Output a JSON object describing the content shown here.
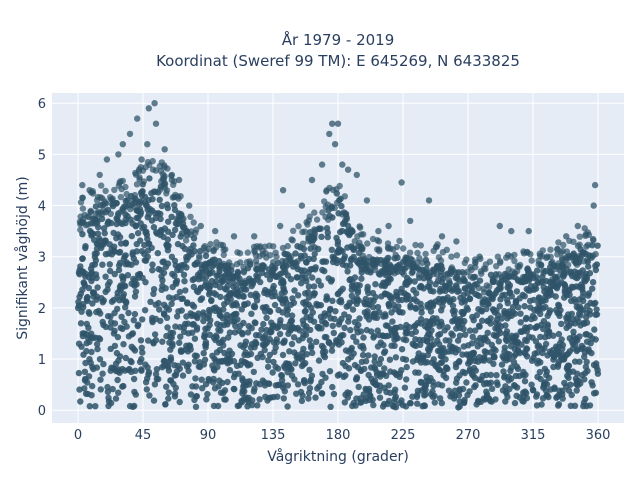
{
  "chart_data": {
    "type": "scatter",
    "title_lines": [
      "År 1979 - 2019",
      "Koordinat (Sweref 99 TM): E 645269, N 6433825"
    ],
    "xlabel": "Vågriktning (grader)",
    "ylabel": "Signifikant våghöjd (m)",
    "xlim": [
      -18,
      378
    ],
    "ylim": [
      -0.25,
      6.2
    ],
    "xticks": [
      0,
      45,
      90,
      135,
      180,
      225,
      270,
      315,
      360
    ],
    "yticks": [
      0,
      1,
      2,
      3,
      4,
      5,
      6
    ],
    "grid": true,
    "marker_color": "#2f5468",
    "plot_bg": "#e5ecf6",
    "upper_envelope": [
      {
        "x": 0,
        "y": 3.8
      },
      {
        "x": 20,
        "y": 4.1
      },
      {
        "x": 35,
        "y": 4.2
      },
      {
        "x": 45,
        "y": 4.5
      },
      {
        "x": 55,
        "y": 4.6
      },
      {
        "x": 65,
        "y": 4.3
      },
      {
        "x": 75,
        "y": 3.6
      },
      {
        "x": 90,
        "y": 3.0
      },
      {
        "x": 110,
        "y": 2.8
      },
      {
        "x": 135,
        "y": 2.9
      },
      {
        "x": 150,
        "y": 3.2
      },
      {
        "x": 165,
        "y": 3.6
      },
      {
        "x": 172,
        "y": 4.0
      },
      {
        "x": 180,
        "y": 4.3
      },
      {
        "x": 188,
        "y": 3.6
      },
      {
        "x": 200,
        "y": 3.0
      },
      {
        "x": 225,
        "y": 3.0
      },
      {
        "x": 250,
        "y": 2.9
      },
      {
        "x": 270,
        "y": 2.6
      },
      {
        "x": 300,
        "y": 2.7
      },
      {
        "x": 330,
        "y": 2.9
      },
      {
        "x": 350,
        "y": 3.2
      },
      {
        "x": 360,
        "y": 3.4
      }
    ],
    "outliers": [
      {
        "x": 53,
        "y": 6.0
      },
      {
        "x": 49,
        "y": 5.9
      },
      {
        "x": 41,
        "y": 5.7
      },
      {
        "x": 54,
        "y": 5.6
      },
      {
        "x": 36,
        "y": 5.4
      },
      {
        "x": 48,
        "y": 5.2
      },
      {
        "x": 31,
        "y": 5.2
      },
      {
        "x": 28,
        "y": 5.0
      },
      {
        "x": 60,
        "y": 5.1
      },
      {
        "x": 44,
        "y": 4.9
      },
      {
        "x": 65,
        "y": 4.6
      },
      {
        "x": 20,
        "y": 4.9
      },
      {
        "x": 8,
        "y": 4.3
      },
      {
        "x": 3,
        "y": 4.4
      },
      {
        "x": 15,
        "y": 4.6
      },
      {
        "x": 70,
        "y": 4.5
      },
      {
        "x": 77,
        "y": 4.0
      },
      {
        "x": 85,
        "y": 3.6
      },
      {
        "x": 95,
        "y": 3.5
      },
      {
        "x": 108,
        "y": 3.4
      },
      {
        "x": 122,
        "y": 3.4
      },
      {
        "x": 140,
        "y": 3.6
      },
      {
        "x": 142,
        "y": 4.3
      },
      {
        "x": 155,
        "y": 4.0
      },
      {
        "x": 162,
        "y": 4.5
      },
      {
        "x": 169,
        "y": 4.8
      },
      {
        "x": 174,
        "y": 5.4
      },
      {
        "x": 176,
        "y": 5.6
      },
      {
        "x": 180,
        "y": 5.6
      },
      {
        "x": 178,
        "y": 5.2
      },
      {
        "x": 183,
        "y": 4.8
      },
      {
        "x": 187,
        "y": 4.7
      },
      {
        "x": 200,
        "y": 4.1
      },
      {
        "x": 208,
        "y": 3.5
      },
      {
        "x": 215,
        "y": 3.6
      },
      {
        "x": 224,
        "y": 4.45
      },
      {
        "x": 230,
        "y": 3.7
      },
      {
        "x": 243,
        "y": 4.1
      },
      {
        "x": 252,
        "y": 3.4
      },
      {
        "x": 262,
        "y": 3.3
      },
      {
        "x": 278,
        "y": 3.0
      },
      {
        "x": 292,
        "y": 3.6
      },
      {
        "x": 300,
        "y": 3.5
      },
      {
        "x": 312,
        "y": 3.5
      },
      {
        "x": 325,
        "y": 3.0
      },
      {
        "x": 338,
        "y": 3.4
      },
      {
        "x": 346,
        "y": 3.6
      },
      {
        "x": 357,
        "y": 4.0
      },
      {
        "x": 358,
        "y": 4.4
      },
      {
        "x": 352,
        "y": 3.2
      },
      {
        "x": 193,
        "y": 4.6
      }
    ]
  }
}
